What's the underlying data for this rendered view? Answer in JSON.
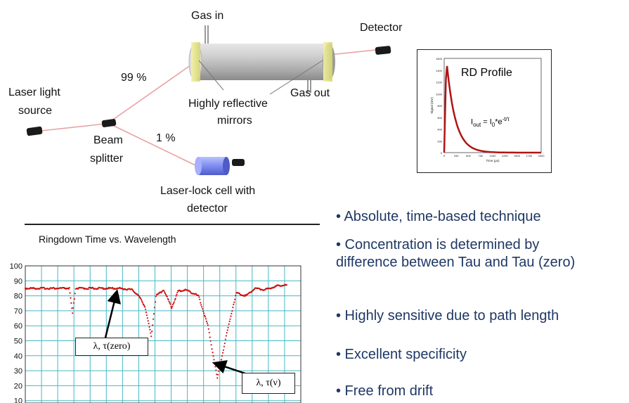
{
  "colors": {
    "beam": "#e8a2a2",
    "bullet_text": "#1f3864",
    "dip_trace": "#cc1111",
    "rd_curve": "#b01414",
    "grid": "#47b8c6"
  },
  "diagram": {
    "labels": {
      "gas_in": "Gas in",
      "detector": "Detector",
      "laser_source_1": "Laser light",
      "laser_source_2": "source",
      "pct_99": "99 %",
      "pct_1": "1 %",
      "beam_splitter_1": "Beam",
      "beam_splitter_2": "splitter",
      "mirrors_1": "Highly reflective",
      "mirrors_2": "mirrors",
      "gas_out": "Gas out",
      "lock_cell_1": "Laser-lock cell with",
      "lock_cell_2": "detector"
    },
    "icons": [
      "laser-source-icon",
      "beam-splitter-icon",
      "detector-icon",
      "lock-cell-icon",
      "ringdown-cell-icon"
    ]
  },
  "rd_profile": {
    "title": "RD Profile",
    "formula_lhs": "I",
    "formula_lhs_sub": "out",
    "formula_mid": " = I",
    "formula_mid_sub": "0",
    "formula_rhs": "*e",
    "formula_sup": "-t/τ",
    "ylabel": "Signal (mV)",
    "xlabel": "Time (µs)",
    "yticks": [
      "1600",
      "1400",
      "1200",
      "1000",
      "800",
      "600",
      "400",
      "200",
      "0"
    ],
    "xticks": [
      "0",
      "250",
      "500",
      "750",
      "1000",
      "1250",
      "1500",
      "1750",
      "2000"
    ]
  },
  "chart_data": {
    "type": "line",
    "title": "Ringdown Time vs. Wavelength",
    "xlabel": "",
    "ylabel": "",
    "ylim": [
      0,
      100
    ],
    "yticks": [
      10,
      20,
      30,
      40,
      50,
      60,
      70,
      80,
      90,
      100
    ],
    "x_categories_count": 17,
    "series": [
      {
        "x": [
          0,
          1,
          2,
          2.8,
          3.0,
          3.2,
          4,
          5,
          6,
          6.8,
          7.2,
          7.6,
          8.0,
          8.3,
          8.8,
          9.3,
          9.7,
          10.2,
          11.0,
          11.6,
          12.2,
          12.8,
          13.4,
          14.0,
          14.6,
          15.2,
          15.8,
          16.2,
          16.6
        ],
        "y": [
          85,
          85,
          85,
          85,
          68,
          85,
          85,
          85,
          85,
          84,
          80,
          73,
          53,
          80,
          84,
          72,
          83,
          84,
          80,
          60,
          25,
          55,
          82,
          80,
          85,
          84,
          86,
          87,
          87
        ]
      }
    ],
    "annotations": [
      {
        "text": "λ, τ(zero)",
        "points_to_x": 5.8,
        "points_to_y": 85
      },
      {
        "text": "λ, τ(ν)",
        "points_to_x": 11.9,
        "points_to_y": 32
      }
    ]
  },
  "rd_curve_data": {
    "type": "line",
    "x_range": [
      0,
      2000
    ],
    "y_range": [
      0,
      1600
    ],
    "peak_x": 60,
    "peak_y": 1470,
    "tau": 180
  },
  "bullets": [
    {
      "lines": [
        "• Absolute, time-based technique"
      ]
    },
    {
      "lines": [
        "• Concentration is determined by",
        "difference between Tau and Tau (zero)"
      ]
    },
    {
      "lines": [
        "• Highly sensitive due to path length"
      ]
    },
    {
      "lines": [
        "• Excellent specificity"
      ]
    },
    {
      "lines": [
        "• Free from drift"
      ]
    }
  ]
}
